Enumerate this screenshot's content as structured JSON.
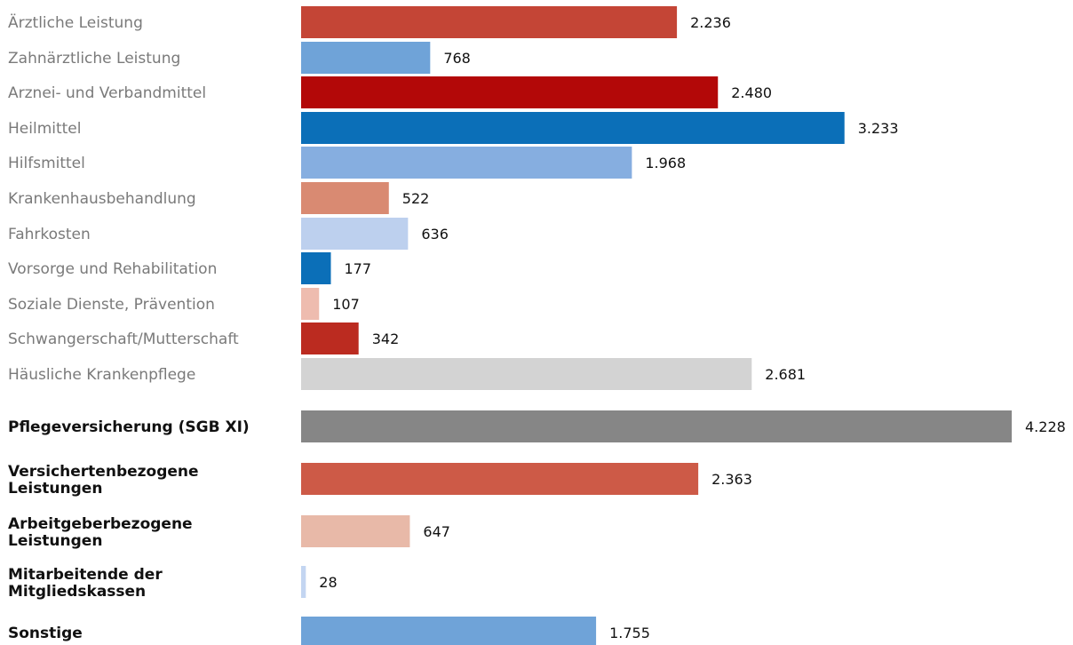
{
  "chart_data": {
    "type": "bar",
    "orientation": "horizontal",
    "categories": [
      "Ärztliche Leistung",
      "Zahnärztliche Leistung",
      "Arznei- und Verbandmittel",
      "Heilmittel",
      "Hilfsmittel",
      "Krankenhausbehandlung",
      "Fahrkosten",
      "Vorsorge und Rehabilitation",
      "Soziale Dienste, Prävention",
      "Schwangerschaft/Mutterschaft",
      "Häusliche Krankenpflege",
      "Pflegeversicherung (SGB XI)",
      "Versichertenbezogene Leistungen",
      "Arbeitgeberbezogene Leistungen",
      "Mitarbeitende der Mitgliedskassen",
      "Sonstige"
    ],
    "values": [
      2236,
      768,
      2480,
      3233,
      1968,
      522,
      636,
      177,
      107,
      342,
      2681,
      4228,
      2363,
      647,
      28,
      1755
    ],
    "value_labels": [
      "2.236",
      "768",
      "2.480",
      "3.233",
      "1.968",
      "522",
      "636",
      "177",
      "107",
      "342",
      "2.681",
      "4.228",
      "2.363",
      "647",
      "28",
      "1.755"
    ],
    "bold_labels": [
      false,
      false,
      false,
      false,
      false,
      false,
      false,
      false,
      false,
      false,
      false,
      true,
      true,
      true,
      true,
      true
    ],
    "colors": [
      "#c44536",
      "#6fa3d8",
      "#b30808",
      "#0b6fb8",
      "#86aee0",
      "#d98a72",
      "#bdd0ee",
      "#0b6fb8",
      "#eebcaf",
      "#bb2b20",
      "#d3d3d3",
      "#868686",
      "#cd5a47",
      "#e8b9a8",
      "#c3d5f1",
      "#6fa3d8"
    ],
    "xlim": [
      0,
      4228
    ],
    "grid": false,
    "legend": "none"
  }
}
